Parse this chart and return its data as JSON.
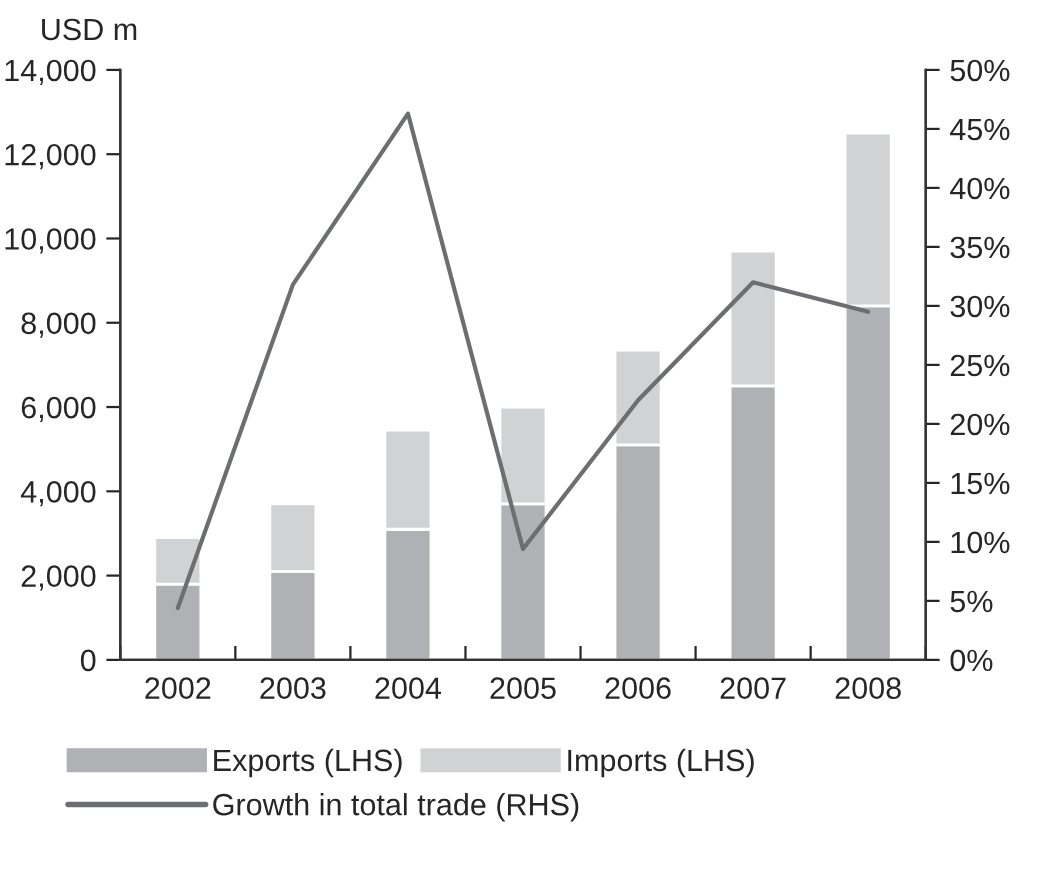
{
  "chart_data": {
    "type": "bar",
    "stacked": true,
    "ylabel": "USD m",
    "categories": [
      "2002",
      "2003",
      "2004",
      "2005",
      "2006",
      "2007",
      "2008"
    ],
    "series": [
      {
        "name": "Exports (LHS)",
        "color": "#b0b1b5",
        "values": [
          1800,
          2100,
          3100,
          3700,
          5100,
          6500,
          8400
        ]
      },
      {
        "name": "Imports (LHS)",
        "color": "#d1d2d4",
        "values": [
          1100,
          1600,
          2350,
          2300,
          2250,
          3200,
          4100
        ]
      },
      {
        "name": "Growth in total trade (RHS)",
        "type": "line",
        "axis": "y2",
        "color": "#6d6e71",
        "values": [
          4.4,
          31.8,
          46.3,
          9.4,
          22,
          32,
          29.5
        ]
      }
    ],
    "ylim": [
      0,
      14000
    ],
    "yticks": [
      {
        "value": 0,
        "label": "0"
      },
      {
        "value": 2000,
        "label": "2,000"
      },
      {
        "value": 4000,
        "label": "4,000"
      },
      {
        "value": 6000,
        "label": "6,000"
      },
      {
        "value": 8000,
        "label": "8,000"
      },
      {
        "value": 10000,
        "label": "10,000"
      },
      {
        "value": 12000,
        "label": "12,000"
      },
      {
        "value": 14000,
        "label": "14,000"
      }
    ],
    "y2lim": [
      0,
      50
    ],
    "y2ticks": [
      {
        "value": 0,
        "label": "0%"
      },
      {
        "value": 5,
        "label": "5%"
      },
      {
        "value": 10,
        "label": "10%"
      },
      {
        "value": 15,
        "label": "15%"
      },
      {
        "value": 20,
        "label": "20%"
      },
      {
        "value": 25,
        "label": "25%"
      },
      {
        "value": 30,
        "label": "30%"
      },
      {
        "value": 35,
        "label": "35%"
      },
      {
        "value": 40,
        "label": "40%"
      },
      {
        "value": 45,
        "label": "45%"
      },
      {
        "value": 50,
        "label": "50%"
      }
    ],
    "grid": false,
    "legend": "bottom"
  }
}
